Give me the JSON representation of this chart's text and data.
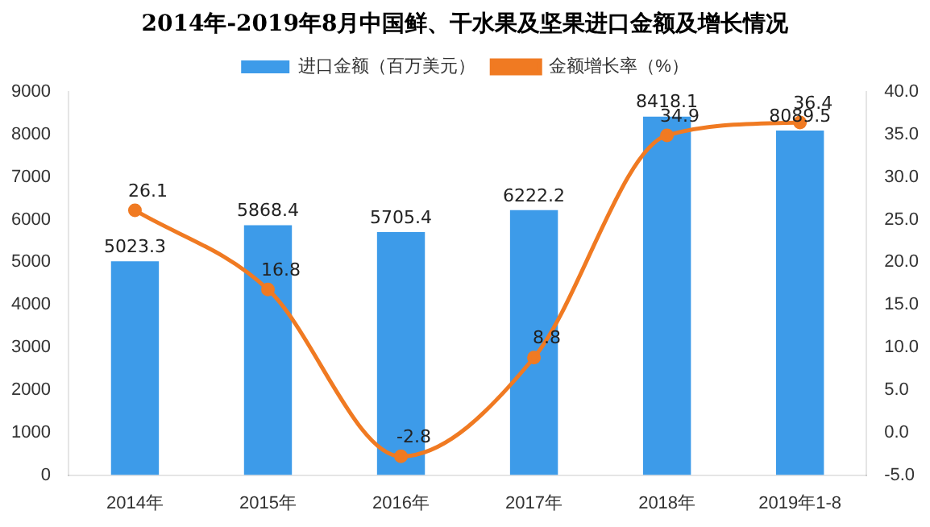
{
  "chart_data": {
    "type": "bar",
    "title": "2014年-2019年8月中国鲜、干水果及坚果进口金额及增长情况",
    "categories": [
      "2014年",
      "2015年",
      "2016年",
      "2017年",
      "2018年",
      "2019年1-8"
    ],
    "series": [
      {
        "name": "进口金额（百万美元）",
        "color": "#3d9be9",
        "values": [
          5023.3,
          5868.4,
          5705.4,
          6222.2,
          8418.1,
          8089.5
        ]
      },
      {
        "name": "金额增长率（%）",
        "type": "line",
        "axis": "y2",
        "color": "#f07a22",
        "marker": "circle",
        "values": [
          26.1,
          16.8,
          -2.8,
          8.8,
          34.9,
          36.4
        ]
      }
    ],
    "ylim": [
      0,
      9000
    ],
    "yticks": [
      0,
      1000,
      2000,
      3000,
      4000,
      5000,
      6000,
      7000,
      8000,
      9000
    ],
    "y2lim": [
      -5,
      40
    ],
    "y2ticks": [
      {
        "value": -5,
        "label": "-5.0"
      },
      {
        "value": 0,
        "label": "0.0"
      },
      {
        "value": 5,
        "label": "5.0"
      },
      {
        "value": 10,
        "label": "10.0"
      },
      {
        "value": 15,
        "label": "15.0"
      },
      {
        "value": 20,
        "label": "20.0"
      },
      {
        "value": 25,
        "label": "25.0"
      },
      {
        "value": 30,
        "label": "30.0"
      },
      {
        "value": 35,
        "label": "35.0"
      },
      {
        "value": 40,
        "label": "40.0"
      }
    ],
    "data_labels": true,
    "legend": "top",
    "grid": false
  }
}
